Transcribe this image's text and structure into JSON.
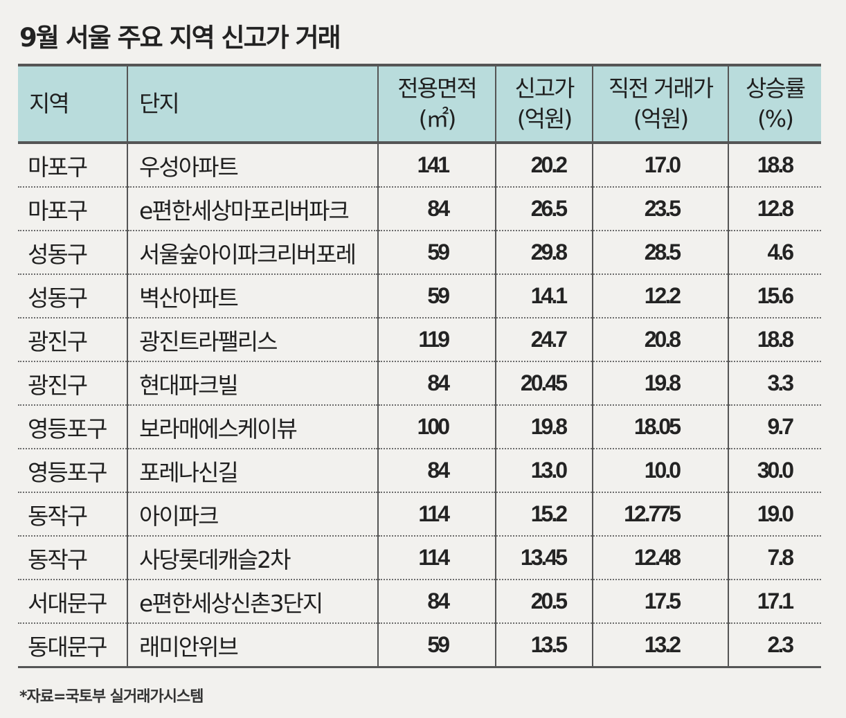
{
  "title": "9월 서울 주요 지역 신고가 거래",
  "headers": {
    "region": "지역",
    "complex": "단지",
    "area_line1": "전용면적",
    "area_line2": "(㎡)",
    "new_line1": "신고가",
    "new_line2": "(억원)",
    "prev_line1": "직전 거래가",
    "prev_line2": "(억원)",
    "rate_line1": "상승률",
    "rate_line2": "(%)"
  },
  "rows": [
    {
      "region": "마포구",
      "complex": "우성아파트",
      "area": "141",
      "new_price": "20.2",
      "prev_price": "17.0",
      "rate": "18.8"
    },
    {
      "region": "마포구",
      "complex": "e편한세상마포리버파크",
      "area": "84",
      "new_price": "26.5",
      "prev_price": "23.5",
      "rate": "12.8"
    },
    {
      "region": "성동구",
      "complex": "서울숲아이파크리버포레",
      "area": "59",
      "new_price": "29.8",
      "prev_price": "28.5",
      "rate": "4.6"
    },
    {
      "region": "성동구",
      "complex": "벽산아파트",
      "area": "59",
      "new_price": "14.1",
      "prev_price": "12.2",
      "rate": "15.6"
    },
    {
      "region": "광진구",
      "complex": "광진트라팰리스",
      "area": "119",
      "new_price": "24.7",
      "prev_price": "20.8",
      "rate": "18.8"
    },
    {
      "region": "광진구",
      "complex": "현대파크빌",
      "area": "84",
      "new_price": "20.45",
      "prev_price": "19.8",
      "rate": "3.3"
    },
    {
      "region": "영등포구",
      "complex": "보라매에스케이뷰",
      "area": "100",
      "new_price": "19.8",
      "prev_price": "18.05",
      "rate": "9.7"
    },
    {
      "region": "영등포구",
      "complex": "포레나신길",
      "area": "84",
      "new_price": "13.0",
      "prev_price": "10.0",
      "rate": "30.0"
    },
    {
      "region": "동작구",
      "complex": "아이파크",
      "area": "114",
      "new_price": "15.2",
      "prev_price": "12.775",
      "rate": "19.0"
    },
    {
      "region": "동작구",
      "complex": "사당롯데캐슬2차",
      "area": "114",
      "new_price": "13.45",
      "prev_price": "12.48",
      "rate": "7.8"
    },
    {
      "region": "서대문구",
      "complex": "e편한세상신촌3단지",
      "area": "84",
      "new_price": "20.5",
      "prev_price": "17.5",
      "rate": "17.1"
    },
    {
      "region": "동대문구",
      "complex": "래미안위브",
      "area": "59",
      "new_price": "13.5",
      "prev_price": "13.2",
      "rate": "2.3"
    }
  ],
  "source": "*자료=국토부 실거래가시스템"
}
